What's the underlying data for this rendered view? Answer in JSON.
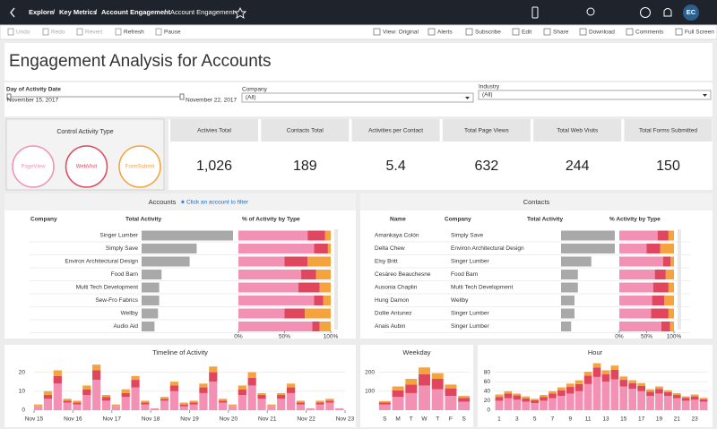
{
  "breadcrumb": [
    "Explore",
    "Key Metrics",
    "Account Engagement",
    "Account Engagement"
  ],
  "avatar": "EC",
  "toolbar_left": [
    "Undo",
    "Redo",
    "Revert",
    "Refresh",
    "Pause"
  ],
  "toolbar_right": [
    "View: Original",
    "Alerts",
    "Subscribe",
    "Edit",
    "Share",
    "Download",
    "Comments",
    "Full Screen"
  ],
  "title": "Engagement Analysis for Accounts",
  "filters": {
    "date_label": "Day of Activity Date",
    "date_start": "November 15, 2017",
    "date_end": "November 22, 2017",
    "company_label": "Company",
    "company_value": "(All)",
    "industry_label": "Industry",
    "industry_value": "(All)"
  },
  "control": {
    "title": "Control Activity Type",
    "types": [
      {
        "name": "PageView",
        "color": "#f391b5"
      },
      {
        "name": "WebVisit",
        "color": "#e0475f"
      },
      {
        "name": "FormSubmit",
        "color": "#f5a33c"
      }
    ]
  },
  "kpis": [
    {
      "label": "Activies Total",
      "value": "1,026"
    },
    {
      "label": "Contacts Total",
      "value": "189"
    },
    {
      "label": "Activities per Contact",
      "value": "5.4"
    },
    {
      "label": "Total Page Views",
      "value": "632"
    },
    {
      "label": "Total Web Visits",
      "value": "244"
    },
    {
      "label": "Total Forms Submitted",
      "value": "150"
    }
  ],
  "chart_data": [
    {
      "type": "bar",
      "title": "Accounts",
      "note": "Click an account to filter",
      "column_headers": [
        "Company",
        "Total Activity",
        "% of Activity by Type"
      ],
      "categories": [
        "Singer Lumber",
        "Simply Save",
        "Environ Architectural Design",
        "Food Barn",
        "Multi Tech Development",
        "Sew-Fro Fabrics",
        "Wellby",
        "Audio Aid"
      ],
      "values": [
        78,
        47,
        41,
        17,
        15,
        15,
        14,
        11
      ],
      "series": [
        {
          "values": [
            75,
            82,
            50,
            68,
            65,
            82,
            50,
            80
          ]
        },
        {
          "values": [
            19,
            15,
            25,
            16,
            23,
            10,
            22,
            8
          ]
        },
        {
          "values": [
            6,
            3,
            25,
            16,
            12,
            8,
            28,
            12
          ]
        }
      ],
      "xticks": [
        {
          "value": 0,
          "label": "0%"
        },
        {
          "value": 50,
          "label": "50%"
        },
        {
          "value": 100,
          "label": "100%"
        }
      ]
    },
    {
      "type": "bar",
      "title": "Contacts",
      "column_headers": [
        "Name",
        "Company",
        "Total Activity",
        "% Activity by Type"
      ],
      "names": [
        "Amankaya Colón",
        "Delta Chew",
        "Elsy Britt",
        "Cesáreo Beauchesne",
        "Ausonia Chaplin",
        "Hung Damon",
        "Dollie Antunez",
        "Anais Aubin"
      ],
      "categories": [
        "Simply Save",
        "Environ Architectural Design",
        "Singer Lumber",
        "Food Barn",
        "Multi Tech Development",
        "Wellby",
        "Singer Lumber",
        "Singer Lumber"
      ],
      "values": [
        16,
        16,
        9,
        5,
        5,
        4,
        4,
        3
      ],
      "series": [
        {
          "values": [
            70,
            50,
            80,
            65,
            62,
            60,
            58,
            77
          ]
        },
        {
          "values": [
            20,
            25,
            14,
            20,
            28,
            22,
            32,
            16
          ]
        },
        {
          "values": [
            10,
            25,
            6,
            15,
            10,
            18,
            10,
            7
          ]
        }
      ],
      "xticks": [
        {
          "value": 0,
          "label": "0%"
        },
        {
          "value": 50,
          "label": "50%"
        },
        {
          "value": 100,
          "label": "100%"
        }
      ]
    },
    {
      "type": "column",
      "title": "Timeline of Activity",
      "x": [
        0,
        0.25,
        0.5,
        0.75,
        1,
        1.25,
        1.5,
        1.75,
        2,
        2.25,
        2.5,
        2.75,
        3,
        3.25,
        3.5,
        3.75,
        4,
        4.25,
        4.5,
        4.75,
        5,
        5.25,
        5.5,
        5.75,
        6,
        6.25,
        6.5,
        6.75,
        7,
        7.25,
        7.5,
        7.75
      ],
      "series": [
        {
          "values": [
            2,
            6,
            14,
            4,
            3,
            8,
            16,
            5,
            2,
            7,
            12,
            3,
            1,
            5,
            10,
            2,
            3,
            9,
            15,
            4,
            2,
            8,
            13,
            6,
            2,
            6,
            9,
            3,
            1,
            3,
            4,
            1
          ]
        },
        {
          "values": [
            0,
            2,
            4,
            1,
            1,
            3,
            5,
            2,
            0,
            2,
            4,
            1,
            0,
            1,
            3,
            1,
            1,
            3,
            5,
            1,
            0,
            3,
            4,
            2,
            0,
            2,
            3,
            1,
            0,
            1,
            1,
            0
          ]
        },
        {
          "values": [
            1,
            2,
            3,
            1,
            1,
            2,
            3,
            1,
            1,
            2,
            2,
            1,
            0,
            1,
            2,
            1,
            1,
            2,
            3,
            1,
            1,
            2,
            3,
            1,
            1,
            1,
            2,
            1,
            0,
            1,
            1,
            0
          ]
        }
      ],
      "xlim": [
        0,
        8
      ],
      "xticks": [
        {
          "value": 0,
          "label": "Nov 15"
        },
        {
          "value": 1,
          "label": "Nov 16"
        },
        {
          "value": 2,
          "label": "Nov 17"
        },
        {
          "value": 3,
          "label": "Nov 18"
        },
        {
          "value": 4,
          "label": "Nov 19"
        },
        {
          "value": 5,
          "label": "Nov 20"
        },
        {
          "value": 6,
          "label": "Nov 21"
        },
        {
          "value": 7,
          "label": "Nov 22"
        },
        {
          "value": 8,
          "label": "Nov 23"
        }
      ],
      "ylim": [
        0,
        25
      ],
      "yticks": [
        0,
        10,
        20
      ]
    },
    {
      "type": "column",
      "title": "Weekday",
      "categories": [
        "S",
        "M",
        "T",
        "W",
        "T",
        "F",
        "S"
      ],
      "series": [
        {
          "values": [
            30,
            70,
            90,
            130,
            110,
            75,
            45
          ]
        },
        {
          "values": [
            10,
            35,
            45,
            60,
            55,
            40,
            20
          ]
        },
        {
          "values": [
            8,
            20,
            30,
            35,
            30,
            20,
            10
          ]
        }
      ],
      "ylim": [
        0,
        250
      ],
      "yticks": [
        100,
        200
      ]
    },
    {
      "type": "column",
      "title": "Hour",
      "categories": [
        "1",
        null,
        "3",
        null,
        "5",
        null,
        "7",
        null,
        "9",
        null,
        "11",
        null,
        "13",
        null,
        "15",
        null,
        "17",
        null,
        "19",
        null,
        "21",
        null,
        "23",
        null
      ],
      "series": [
        {
          "values": [
            20,
            25,
            22,
            18,
            15,
            20,
            25,
            30,
            35,
            40,
            55,
            70,
            60,
            65,
            50,
            45,
            40,
            30,
            35,
            30,
            25,
            20,
            22,
            18
          ]
        },
        {
          "values": [
            8,
            10,
            9,
            7,
            6,
            8,
            10,
            12,
            14,
            15,
            18,
            20,
            16,
            20,
            14,
            12,
            11,
            9,
            10,
            8,
            7,
            6,
            7,
            5
          ]
        },
        {
          "values": [
            5,
            5,
            4,
            4,
            3,
            4,
            5,
            6,
            7,
            8,
            8,
            9,
            8,
            9,
            7,
            6,
            6,
            5,
            5,
            4,
            4,
            3,
            4,
            3
          ]
        }
      ],
      "ylim": [
        0,
        100
      ],
      "yticks": [
        0,
        20,
        40,
        60,
        80
      ]
    }
  ]
}
